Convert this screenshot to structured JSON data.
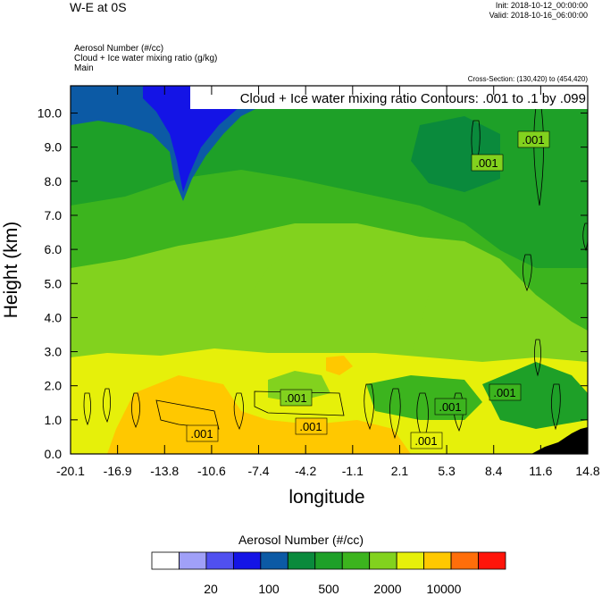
{
  "header": {
    "title": "W-E at 0S",
    "init": "Init: 2018-10-12_00:00:00",
    "valid": "Valid: 2018-10-16_06:00:00"
  },
  "fields": {
    "line1": "Aerosol Number   (#/cc)",
    "line2": "Cloud + Ice water mixing ratio   (g/kg)",
    "line3": "Main"
  },
  "cross_section": "Cross-Section: (130,420) to (454,420)",
  "contour_info": "Cloud + Ice water mixing ratio Contours: .001 to .1 by .099",
  "contour_labels": [
    ".001",
    ".001",
    ".001",
    ".001",
    ".001",
    ".001",
    ".001",
    ".001"
  ],
  "colorbar": {
    "title": "Aerosol Number  (#/cc)",
    "labels": [
      "20",
      "100",
      "500",
      "2000",
      "10000"
    ],
    "colors": [
      "#ffffff",
      "#a0a0f8",
      "#5050f0",
      "#1414e6",
      "#0c5aa5",
      "#0a8a3c",
      "#1ea028",
      "#3cb41e",
      "#82d21e",
      "#e6f00a",
      "#ffc800",
      "#ff6e0a",
      "#ff140a"
    ]
  },
  "chart_data": {
    "type": "heatmap",
    "title": "",
    "xlabel": "longitude",
    "ylabel": "Height (km)",
    "x_ticks": [
      "-20.1",
      "-16.9",
      "-13.8",
      "-10.6",
      "-7.4",
      "-4.2",
      "-1.1",
      "2.1",
      "5.3",
      "8.4",
      "11.6",
      "14.8"
    ],
    "y_ticks": [
      "0.0",
      "1.0",
      "2.0",
      "3.0",
      "4.0",
      "5.0",
      "6.0",
      "7.0",
      "8.0",
      "9.0",
      "10.0"
    ],
    "xlim": [
      -20.1,
      14.8
    ],
    "ylim": [
      0,
      10.8
    ],
    "levels": [
      20,
      100,
      500,
      2000,
      10000
    ],
    "description_bands": [
      {
        "height_km": [
          0,
          0.8
        ],
        "aerosol_level": "high (orange/yellow)"
      },
      {
        "height_km": [
          0.8,
          3.0
        ],
        "aerosol_level": "yellow"
      },
      {
        "height_km": [
          3.0,
          7.0
        ],
        "aerosol_level": "light green"
      },
      {
        "height_km": [
          7.0,
          10.8
        ],
        "aerosol_level": "green/blue"
      }
    ],
    "contour_levels": [
      0.001,
      0.1
    ]
  }
}
